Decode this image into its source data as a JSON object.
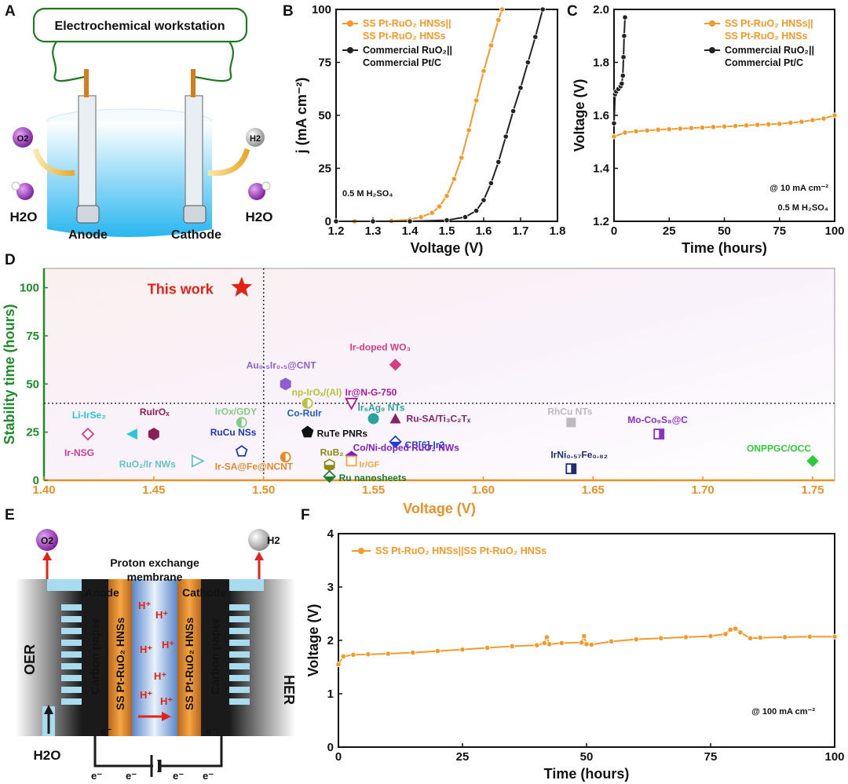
{
  "panel_labels": {
    "a": "A",
    "b": "B",
    "c": "C",
    "d": "D",
    "e": "E",
    "f": "F"
  },
  "colors": {
    "orange": "#f39a2b",
    "black": "#222222",
    "green_axis": "#1f8a2a",
    "orange_axis": "#e8912a",
    "star": "#e2231a"
  },
  "schematic_a": {
    "title": "Electrochemical workstation",
    "anode": "Anode",
    "cathode": "Cathode",
    "left_species": "H2O",
    "right_species": "H2O",
    "o2_bubble": "O2",
    "h2_bubble": "H2"
  },
  "schematic_e": {
    "membrane_line1": "Proton exchange",
    "membrane_line2": "membrane",
    "anode": "Anode",
    "cathode": "Cathode",
    "oer": "OER",
    "her": "HER",
    "carbon_paper": "Carbon paper",
    "catalyst": "SS Pt-RuO₂ HNSs",
    "proton": "H⁺",
    "electron": "e⁻",
    "water": "H2O",
    "o2": "O2",
    "h2": "H2"
  },
  "chart_data": [
    {
      "id": "B",
      "type": "line",
      "xlabel": "Voltage (V)",
      "ylabel": "j (mA cm⁻²)",
      "xlim": [
        1.2,
        1.8
      ],
      "ylim": [
        0,
        100
      ],
      "xticks": [
        "1.2",
        "1.3",
        "1.4",
        "1.5",
        "1.6",
        "1.7",
        "1.8"
      ],
      "yticks": [
        "0",
        "25",
        "50",
        "75",
        "100"
      ],
      "annotation": "0.5 M H₂SO₄",
      "legend_position": "top-left",
      "series": [
        {
          "name": "SS Pt-RuO₂ HNSs|| SS Pt-RuO₂ HNSs",
          "color": "#f39a2b",
          "x": [
            1.2,
            1.25,
            1.3,
            1.35,
            1.4,
            1.43,
            1.46,
            1.48,
            1.5,
            1.52,
            1.54,
            1.56,
            1.58,
            1.6,
            1.62,
            1.64,
            1.65
          ],
          "y": [
            0,
            0,
            0,
            0.2,
            0.8,
            2,
            4,
            7,
            12,
            20,
            30,
            43,
            57,
            71,
            83,
            95,
            100
          ]
        },
        {
          "name": "Commercial RuO₂|| Commercial Pt/C",
          "color": "#222222",
          "x": [
            1.2,
            1.3,
            1.4,
            1.5,
            1.55,
            1.58,
            1.6,
            1.62,
            1.64,
            1.66,
            1.68,
            1.7,
            1.72,
            1.74,
            1.76
          ],
          "y": [
            0,
            0,
            0,
            0.5,
            2,
            5,
            10,
            18,
            28,
            40,
            52,
            63,
            75,
            87,
            100
          ]
        }
      ]
    },
    {
      "id": "C",
      "type": "line",
      "xlabel": "Time (hours)",
      "ylabel": "Voltage (V)",
      "xlim": [
        0,
        100
      ],
      "ylim": [
        1.2,
        2.0
      ],
      "xticks": [
        "0",
        "25",
        "50",
        "75",
        "100"
      ],
      "yticks": [
        "1.2",
        "1.4",
        "1.6",
        "1.8",
        "2.0"
      ],
      "annotation1": "@ 10 mA cm⁻²",
      "annotation2": "0.5 M H₂SO₄",
      "legend_position": "top-right",
      "series": [
        {
          "name": "SS Pt-RuO₂ HNSs|| SS Pt-RuO₂ HNSs",
          "color": "#f39a2b",
          "x": [
            0,
            5,
            10,
            15,
            20,
            25,
            30,
            35,
            40,
            45,
            50,
            55,
            60,
            65,
            70,
            75,
            80,
            85,
            90,
            95,
            100
          ],
          "y": [
            1.52,
            1.535,
            1.54,
            1.543,
            1.546,
            1.548,
            1.55,
            1.552,
            1.554,
            1.556,
            1.558,
            1.56,
            1.562,
            1.564,
            1.566,
            1.568,
            1.572,
            1.576,
            1.582,
            1.588,
            1.6
          ]
        },
        {
          "name": "Commercial RuO₂|| Commercial Pt/C",
          "color": "#222222",
          "x": [
            0,
            0.5,
            1,
            2,
            3,
            3.5,
            4,
            4.3,
            4.6,
            5
          ],
          "y": [
            1.57,
            1.68,
            1.69,
            1.7,
            1.71,
            1.72,
            1.75,
            1.82,
            1.9,
            1.97
          ]
        }
      ]
    },
    {
      "id": "D",
      "type": "scatter",
      "xlabel": "Voltage (V)",
      "ylabel": "Stability time (hours)",
      "xlim": [
        1.4,
        1.76
      ],
      "ylim": [
        0,
        110
      ],
      "xticks": [
        "1.40",
        "1.45",
        "1.50",
        "1.55",
        "1.60",
        "1.65",
        "1.70",
        "1.75"
      ],
      "yticks": [
        "0",
        "25",
        "50",
        "75",
        "100"
      ],
      "ref_lines": {
        "x": 1.5,
        "y": 40
      },
      "points": [
        {
          "label": "This work",
          "x": 1.49,
          "y": 100,
          "marker": "star",
          "color": "#e2231a"
        },
        {
          "label": "Ir-doped WO₃",
          "x": 1.56,
          "y": 60,
          "marker": "diamond",
          "color": "#d63d82"
        },
        {
          "label": "Au₀.₅Ir₀.₅@CNT",
          "x": 1.51,
          "y": 50,
          "marker": "hexagon",
          "color": "#8e5fd1"
        },
        {
          "label": "np-IrOₓ/(Al)",
          "x": 1.52,
          "y": 40,
          "marker": "circle-half",
          "color": "#b9c23a"
        },
        {
          "label": "Ir@N-G-750",
          "x": 1.54,
          "y": 40,
          "marker": "tri-down",
          "color": "#a31c9d"
        },
        {
          "label": "Ir₆Ag₉ NTs",
          "x": 1.55,
          "y": 32,
          "marker": "circle",
          "color": "#2aa39a"
        },
        {
          "label": "Ru-SA/Ti₃C₂Tₓ",
          "x": 1.56,
          "y": 32,
          "marker": "tri-up",
          "color": "#8c1f6b"
        },
        {
          "label": "RhCu NTs",
          "x": 1.64,
          "y": 30,
          "marker": "square",
          "color": "#bbbbbb"
        },
        {
          "label": "Mo-Co₉S₈@C",
          "x": 1.68,
          "y": 24,
          "marker": "square-half",
          "color": "#8b2fc9"
        },
        {
          "label": "Li-IrSe₂",
          "x": 1.44,
          "y": 24,
          "marker": "tri-left",
          "color": "#29c6d6"
        },
        {
          "label": "RuIrOₓ",
          "x": 1.45,
          "y": 24,
          "marker": "hexagon",
          "color": "#8c1f53"
        },
        {
          "label": "IrOx/GDY",
          "x": 1.49,
          "y": 30,
          "marker": "circle-half",
          "color": "#84cc84"
        },
        {
          "label": "Co-RuIr",
          "x": 1.52,
          "y": 25,
          "marker": "pentagon",
          "color": "#1f5fbf"
        },
        {
          "label": "RuCu NSs",
          "x": 1.49,
          "y": 15,
          "marker": "pentagon-open",
          "color": "#1e36c9"
        },
        {
          "label": "RuTe PNRs",
          "x": 1.52,
          "y": 25,
          "marker": "pentagon",
          "color": "#111111"
        },
        {
          "label": "CB[6]-Ir2",
          "x": 1.56,
          "y": 20,
          "marker": "diamond-half",
          "color": "#1f3fd1"
        },
        {
          "label": "Ir-NSG",
          "x": 1.42,
          "y": 24,
          "marker": "diamond-open",
          "color": "#cc3c90"
        },
        {
          "label": "RuO₂/Ir NWs",
          "x": 1.47,
          "y": 10,
          "marker": "tri-right",
          "color": "#63c3c9"
        },
        {
          "label": "Ir-SA@Fe@NCNT",
          "x": 1.51,
          "y": 12,
          "marker": "circle-half",
          "color": "#e38a2a"
        },
        {
          "label": "RuB₂",
          "x": 1.53,
          "y": 8,
          "marker": "hexagon-half",
          "color": "#8c8a12"
        },
        {
          "label": "Co/Ni-doped RuO₂ NWs",
          "x": 1.54,
          "y": 12,
          "marker": "pentagon",
          "color": "#7b1fc8"
        },
        {
          "label": "Ir/GF",
          "x": 1.54,
          "y": 10,
          "marker": "square-open",
          "color": "#f0a844"
        },
        {
          "label": "Ru nanosheets",
          "x": 1.53,
          "y": 2,
          "marker": "diamond-half",
          "color": "#1c7d2f"
        },
        {
          "label": "IrNi₀.₅₇Fe₀.₈₂",
          "x": 1.64,
          "y": 6,
          "marker": "square-half",
          "color": "#1f2f6b"
        },
        {
          "label": "ONPPGC/OCC",
          "x": 1.75,
          "y": 10,
          "marker": "diamond",
          "color": "#2fcb3a"
        }
      ]
    },
    {
      "id": "F",
      "type": "line",
      "xlabel": "Time (hours)",
      "ylabel": "Voltage (V)",
      "xlim": [
        0,
        100
      ],
      "ylim": [
        0,
        4
      ],
      "xticks": [
        "0",
        "25",
        "50",
        "75",
        "100"
      ],
      "yticks": [
        "0",
        "1",
        "2",
        "3",
        "4"
      ],
      "annotation": "@ 100 mA cm⁻²",
      "legend_position": "top-left",
      "series": [
        {
          "name": "SS Pt-RuO₂ HNSs||SS Pt-RuO₂ HNSs",
          "color": "#f39a2b",
          "x": [
            0,
            1,
            3,
            6,
            10,
            15,
            20,
            25,
            30,
            35,
            40,
            41.5,
            42,
            42.5,
            45,
            49,
            49.5,
            50,
            51,
            55,
            60,
            65,
            70,
            75,
            78,
            79,
            80,
            81,
            83,
            85,
            90,
            95,
            100
          ],
          "y": [
            1.55,
            1.7,
            1.73,
            1.74,
            1.75,
            1.77,
            1.8,
            1.83,
            1.86,
            1.89,
            1.91,
            1.95,
            2.06,
            1.93,
            1.95,
            1.96,
            2.08,
            1.93,
            1.92,
            1.98,
            2.02,
            2.04,
            2.06,
            2.08,
            2.12,
            2.2,
            2.22,
            2.15,
            2.04,
            2.05,
            2.06,
            2.07,
            2.07
          ]
        }
      ]
    }
  ]
}
